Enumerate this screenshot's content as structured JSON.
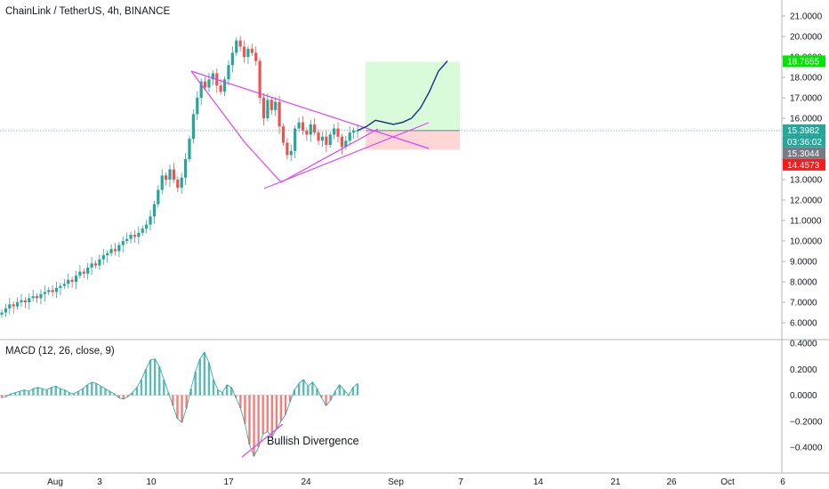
{
  "chart_data": [
    {
      "type": "candlestick",
      "title": "ChainLink / TetherUS, 4h, BINANCE",
      "ylim": [
        6.0,
        21.0
      ],
      "y_ticks": [
        "21.0000",
        "20.0000",
        "19.0000",
        "18.0000",
        "17.0000",
        "16.0000",
        "15.0000",
        "14.0000",
        "13.0000",
        "12.0000",
        "11.0000",
        "10.0000",
        "9.0000",
        "8.0000",
        "7.0000",
        "6.0000"
      ],
      "x_ticks": [
        "Aug",
        "3",
        "10",
        "17",
        "24",
        "Sep",
        "7",
        "14",
        "21",
        "26",
        "Oct",
        "6"
      ],
      "price_labels": [
        {
          "value": "18.7655",
          "color": "#00e600"
        },
        {
          "value": "15.3982",
          "color": "#26a69a"
        },
        {
          "value": "03:36:02",
          "color": "#26a69a"
        },
        {
          "value": "15.3044",
          "color": "#787b86"
        },
        {
          "value": "14.4573",
          "color": "#ff1a1a"
        }
      ],
      "series_closes": [
        6.5,
        6.7,
        6.9,
        6.8,
        7.0,
        7.1,
        7.0,
        7.2,
        7.3,
        7.2,
        7.4,
        7.5,
        7.6,
        7.5,
        7.7,
        7.8,
        7.9,
        8.1,
        8.0,
        8.3,
        8.5,
        8.4,
        8.7,
        8.9,
        8.8,
        9.1,
        9.3,
        9.4,
        9.6,
        9.5,
        9.8,
        10.0,
        10.1,
        10.3,
        10.2,
        10.4,
        10.6,
        10.8,
        11.2,
        11.8,
        12.5,
        13.2,
        13.0,
        13.5,
        13.0,
        12.6,
        13.1,
        14.0,
        15.0,
        16.2,
        17.0,
        17.8,
        17.5,
        17.9,
        18.2,
        17.6,
        17.3,
        17.9,
        18.6,
        19.2,
        19.8,
        19.5,
        19.0,
        19.4,
        19.2,
        18.8,
        17.0,
        16.0,
        16.9,
        16.4,
        16.8,
        15.6,
        14.8,
        14.2,
        14.4,
        15.5,
        15.8,
        15.4,
        15.2,
        15.7,
        15.3,
        14.9,
        15.1,
        14.7,
        15.2,
        15.5,
        15.1,
        14.6,
        14.9,
        15.3,
        15.4,
        15.4
      ],
      "trade_box": {
        "entry": 15.3982,
        "target": 18.7655,
        "stop": 14.4573
      },
      "projection": [
        15.4,
        15.6,
        15.9,
        15.8,
        15.7,
        15.8,
        16.0,
        16.5,
        17.3,
        18.3,
        18.8
      ]
    },
    {
      "type": "bar",
      "title": "MACD (12, 26, close, 9)",
      "ylim": [
        -0.5,
        0.4
      ],
      "y_ticks": [
        "0.4000",
        "0.2000",
        "0.0000",
        "−0.2000",
        "−0.4000"
      ],
      "annotation": "Bullish Divergence",
      "values": [
        -0.02,
        -0.01,
        0.01,
        0.02,
        0.03,
        0.04,
        0.03,
        0.05,
        0.06,
        0.05,
        0.04,
        0.06,
        0.07,
        0.05,
        0.04,
        0.02,
        0.01,
        0.03,
        0.05,
        0.08,
        0.1,
        0.09,
        0.07,
        0.05,
        0.03,
        0.01,
        -0.02,
        -0.03,
        -0.01,
        0.02,
        0.06,
        0.12,
        0.2,
        0.27,
        0.28,
        0.22,
        0.12,
        0.02,
        -0.08,
        -0.18,
        -0.21,
        -0.1,
        0.05,
        0.18,
        0.28,
        0.33,
        0.25,
        0.12,
        0.04,
        0.02,
        0.08,
        0.06,
        -0.02,
        -0.1,
        -0.22,
        -0.38,
        -0.47,
        -0.4,
        -0.3,
        -0.28,
        -0.32,
        -0.26,
        -0.2,
        -0.15,
        -0.05,
        0.04,
        0.09,
        0.12,
        0.07,
        0.1,
        0.05,
        -0.02,
        -0.08,
        -0.04,
        0.03,
        0.08,
        0.04,
        0.0,
        0.06,
        0.09
      ]
    }
  ]
}
